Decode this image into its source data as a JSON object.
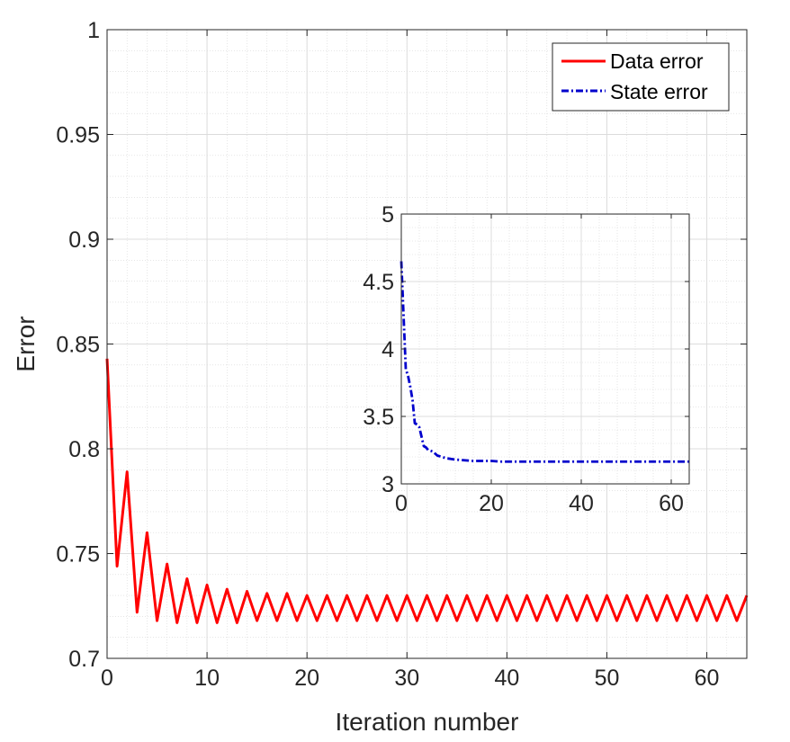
{
  "chart_data": [
    {
      "type": "line",
      "xlabel": "Iteration number",
      "ylabel": "Error",
      "xlim": [
        0,
        64
      ],
      "ylim": [
        0.7,
        1
      ],
      "xticks": [
        0,
        10,
        20,
        30,
        40,
        50,
        60
      ],
      "yticks": [
        0.7,
        0.75,
        0.8,
        0.85,
        0.9,
        0.95,
        1
      ],
      "ytick_labels": [
        "0.7",
        "0.75",
        "0.8",
        "0.85",
        "0.9",
        "0.95",
        "1"
      ],
      "grid": true,
      "minor_grid": true,
      "legend_position": "top-right",
      "series": [
        {
          "name": "Data error",
          "color": "#ff0000",
          "style": "solid",
          "x": [
            0,
            1,
            2,
            3,
            4,
            5,
            6,
            7,
            8,
            9,
            10,
            11,
            12,
            13,
            14,
            15,
            16,
            17,
            18,
            19,
            20,
            21,
            22,
            23,
            24,
            25,
            26,
            27,
            28,
            29,
            30,
            31,
            32,
            33,
            34,
            35,
            36,
            37,
            38,
            39,
            40,
            41,
            42,
            43,
            44,
            45,
            46,
            47,
            48,
            49,
            50,
            51,
            52,
            53,
            54,
            55,
            56,
            57,
            58,
            59,
            60,
            61,
            62,
            63,
            64
          ],
          "y": [
            0.843,
            0.744,
            0.789,
            0.722,
            0.76,
            0.718,
            0.745,
            0.717,
            0.738,
            0.717,
            0.735,
            0.717,
            0.733,
            0.717,
            0.732,
            0.718,
            0.731,
            0.718,
            0.731,
            0.718,
            0.73,
            0.718,
            0.73,
            0.718,
            0.73,
            0.718,
            0.73,
            0.718,
            0.73,
            0.718,
            0.73,
            0.718,
            0.73,
            0.718,
            0.73,
            0.718,
            0.73,
            0.718,
            0.73,
            0.718,
            0.73,
            0.718,
            0.73,
            0.718,
            0.73,
            0.718,
            0.73,
            0.718,
            0.73,
            0.718,
            0.73,
            0.718,
            0.73,
            0.718,
            0.73,
            0.718,
            0.73,
            0.718,
            0.73,
            0.718,
            0.73,
            0.718,
            0.73,
            0.718,
            0.73
          ]
        },
        {
          "name": "State error",
          "color": "#0000cc",
          "style": "dash-dot",
          "legend_only": true
        }
      ]
    },
    {
      "type": "line",
      "inset": true,
      "xlim": [
        0,
        64
      ],
      "ylim": [
        3,
        5
      ],
      "xticks": [
        0,
        20,
        40,
        60
      ],
      "yticks": [
        3,
        3.5,
        4,
        4.5,
        5
      ],
      "ytick_labels": [
        "3",
        "3.5",
        "4",
        "4.5",
        "5"
      ],
      "grid": true,
      "minor_grid": true,
      "series": [
        {
          "color": "#0000cc",
          "style": "dash-dot",
          "x": [
            0,
            0.5,
            1,
            1.5,
            2,
            2.5,
            3,
            3.5,
            4,
            4.5,
            5,
            5.5,
            6,
            7,
            8,
            9,
            10,
            11,
            12,
            14,
            16,
            18,
            20,
            22,
            24,
            26,
            28,
            30,
            32,
            34,
            36,
            38,
            40,
            42,
            44,
            46,
            48,
            50,
            52,
            54,
            56,
            58,
            60,
            62,
            64
          ],
          "y": [
            4.65,
            4.25,
            3.85,
            3.8,
            3.72,
            3.62,
            3.45,
            3.44,
            3.42,
            3.35,
            3.28,
            3.27,
            3.25,
            3.24,
            3.21,
            3.2,
            3.19,
            3.185,
            3.18,
            3.175,
            3.17,
            3.17,
            3.17,
            3.165,
            3.165,
            3.165,
            3.165,
            3.165,
            3.165,
            3.165,
            3.165,
            3.165,
            3.165,
            3.165,
            3.165,
            3.165,
            3.165,
            3.165,
            3.165,
            3.165,
            3.165,
            3.165,
            3.165,
            3.165,
            3.165
          ]
        }
      ]
    }
  ]
}
